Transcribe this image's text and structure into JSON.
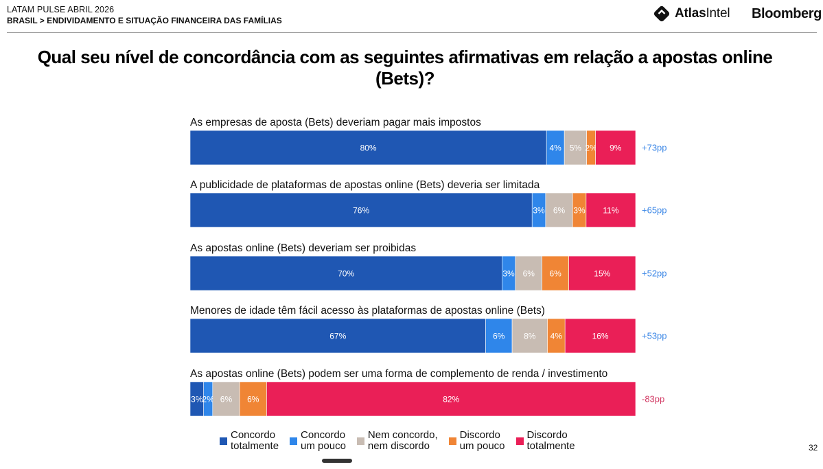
{
  "header": {
    "kicker": "LATAM PULSE ABRIL 2026",
    "breadcrumb": "BRASIL > ENDIVIDAMENTO E SITUAÇÃO FINANCEIRA DAS FAMÍLIAS",
    "logo_atlas_bold": "Atlas",
    "logo_atlas_regular": "Intel",
    "logo_bloomberg": "Bloomberg"
  },
  "page_number": "32",
  "colors": {
    "concordo_totalmente": "#1f57b3",
    "concordo_um_pouco": "#2f86ea",
    "nem_concordo": "#c8bcb3",
    "discordo_um_pouco": "#f08535",
    "discordo_totalmente": "#ea1f57",
    "net_positive": "#3a86e6",
    "net_negative": "#d23a64"
  },
  "chart_data": {
    "type": "bar",
    "orientation": "horizontal",
    "stacked": true,
    "title": "Qual seu nível de concordância com as seguintes afirmativas em relação a apostas online (Bets)?",
    "categories": [
      "As empresas de aposta (Bets) deveriam pagar mais impostos",
      "A publicidade de plataformas de apostas online (Bets) deveria ser limitada",
      "As apostas online (Bets) deveriam ser proibidas",
      "Menores de idade têm fácil acesso às plataformas de apostas online (Bets)",
      "As apostas online (Bets) podem ser uma forma de complemento de renda / investimento"
    ],
    "series": [
      {
        "name": "Concordo\ntotalmente",
        "color": "#1f57b3",
        "values": [
          80,
          76,
          70,
          67,
          3
        ]
      },
      {
        "name": "Concordo\num pouco",
        "color": "#2f86ea",
        "values": [
          4,
          3,
          3,
          6,
          2
        ]
      },
      {
        "name": "Nem concordo,\nnem discordo",
        "color": "#c8bcb3",
        "values": [
          5,
          6,
          6,
          8,
          6
        ]
      },
      {
        "name": "Discordo\num pouco",
        "color": "#f08535",
        "values": [
          2,
          3,
          6,
          4,
          6
        ]
      },
      {
        "name": "Discordo\ntotalmente",
        "color": "#ea1f57",
        "values": [
          9,
          11,
          15,
          16,
          82
        ]
      }
    ],
    "value_labels": [
      [
        "80%",
        "4%",
        "5%",
        "2%",
        "9%"
      ],
      [
        "76%",
        "3%",
        "6%",
        "3%",
        "11%"
      ],
      [
        "70%",
        "3%",
        "6%",
        "6%",
        "15%"
      ],
      [
        "67%",
        "6%",
        "8%",
        "4%",
        "16%"
      ],
      [
        "3%",
        "2%",
        "6%",
        "6%",
        "82%"
      ]
    ],
    "net_labels": [
      "+73pp",
      "+65pp",
      "+52pp",
      "+53pp",
      "-83pp"
    ],
    "net_values": [
      73,
      65,
      52,
      53,
      -83
    ],
    "legend_position": "bottom"
  }
}
